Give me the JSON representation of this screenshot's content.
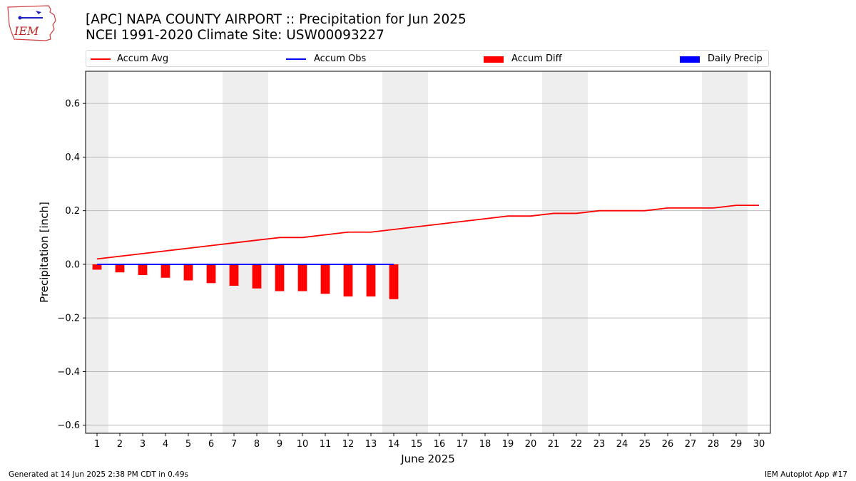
{
  "header": {
    "title_line1": "[APC] NAPA COUNTY AIRPORT :: Precipitation for Jun 2025",
    "title_line2": "NCEI 1991-2020 Climate Site: USW00093227",
    "logo_text": "IEM"
  },
  "legend": {
    "accum_avg": "Accum Avg",
    "accum_obs": "Accum Obs",
    "accum_diff": "Accum Diff",
    "daily_precip": "Daily Precip"
  },
  "footer": {
    "left": "Generated at 14 Jun 2025 2:38 PM CDT in 0.49s",
    "right": "IEM Autoplot App #17"
  },
  "colors": {
    "accum_avg": "#ff0000",
    "accum_obs": "#0000ff",
    "accum_diff": "#ff0000",
    "daily_precip": "#0000ff",
    "weekend_shade": "#eeeeee",
    "grid": "#b0b0b0"
  },
  "chart_data": {
    "type": "bar",
    "title": "[APC] NAPA COUNTY AIRPORT :: Precipitation for Jun 2025",
    "xlabel": "June 2025",
    "ylabel": "Precipitation [inch]",
    "xlim": [
      0.5,
      30.5
    ],
    "ylim": [
      -0.63,
      0.72
    ],
    "yticks": [
      -0.6,
      -0.4,
      -0.2,
      0.0,
      0.2,
      0.4,
      0.6
    ],
    "ytick_labels": [
      "−0.6",
      "−0.4",
      "−0.2",
      "0.0",
      "0.2",
      "0.4",
      "0.6"
    ],
    "xticks": [
      1,
      2,
      3,
      4,
      5,
      6,
      7,
      8,
      9,
      10,
      11,
      12,
      13,
      14,
      15,
      16,
      17,
      18,
      19,
      20,
      21,
      22,
      23,
      24,
      25,
      26,
      27,
      28,
      29,
      30
    ],
    "grid": "y",
    "weekend_spans": [
      [
        0.5,
        1.5
      ],
      [
        6.5,
        8.5
      ],
      [
        13.5,
        15.5
      ],
      [
        20.5,
        22.5
      ],
      [
        27.5,
        29.5
      ]
    ],
    "series": [
      {
        "name": "Accum Avg",
        "kind": "line",
        "x": [
          1,
          2,
          3,
          4,
          5,
          6,
          7,
          8,
          9,
          10,
          11,
          12,
          13,
          14,
          15,
          16,
          17,
          18,
          19,
          20,
          21,
          22,
          23,
          24,
          25,
          26,
          27,
          28,
          29,
          30
        ],
        "values": [
          0.02,
          0.03,
          0.04,
          0.05,
          0.06,
          0.07,
          0.08,
          0.09,
          0.1,
          0.1,
          0.11,
          0.12,
          0.12,
          0.13,
          0.14,
          0.15,
          0.16,
          0.17,
          0.18,
          0.18,
          0.19,
          0.19,
          0.2,
          0.2,
          0.2,
          0.21,
          0.21,
          0.21,
          0.22,
          0.22
        ]
      },
      {
        "name": "Accum Obs",
        "kind": "line",
        "x": [
          1,
          2,
          3,
          4,
          5,
          6,
          7,
          8,
          9,
          10,
          11,
          12,
          13,
          14
        ],
        "values": [
          0,
          0,
          0,
          0,
          0,
          0,
          0,
          0,
          0,
          0,
          0,
          0,
          0,
          0
        ]
      },
      {
        "name": "Accum Diff",
        "kind": "bar",
        "x": [
          1,
          2,
          3,
          4,
          5,
          6,
          7,
          8,
          9,
          10,
          11,
          12,
          13,
          14
        ],
        "values": [
          -0.02,
          -0.03,
          -0.04,
          -0.05,
          -0.06,
          -0.07,
          -0.08,
          -0.09,
          -0.1,
          -0.1,
          -0.11,
          -0.12,
          -0.12,
          -0.13
        ]
      },
      {
        "name": "Daily Precip",
        "kind": "bar",
        "x": [
          1,
          2,
          3,
          4,
          5,
          6,
          7,
          8,
          9,
          10,
          11,
          12,
          13,
          14
        ],
        "values": [
          0,
          0,
          0,
          0,
          0,
          0,
          0,
          0,
          0,
          0,
          0,
          0,
          0,
          0
        ]
      }
    ]
  }
}
